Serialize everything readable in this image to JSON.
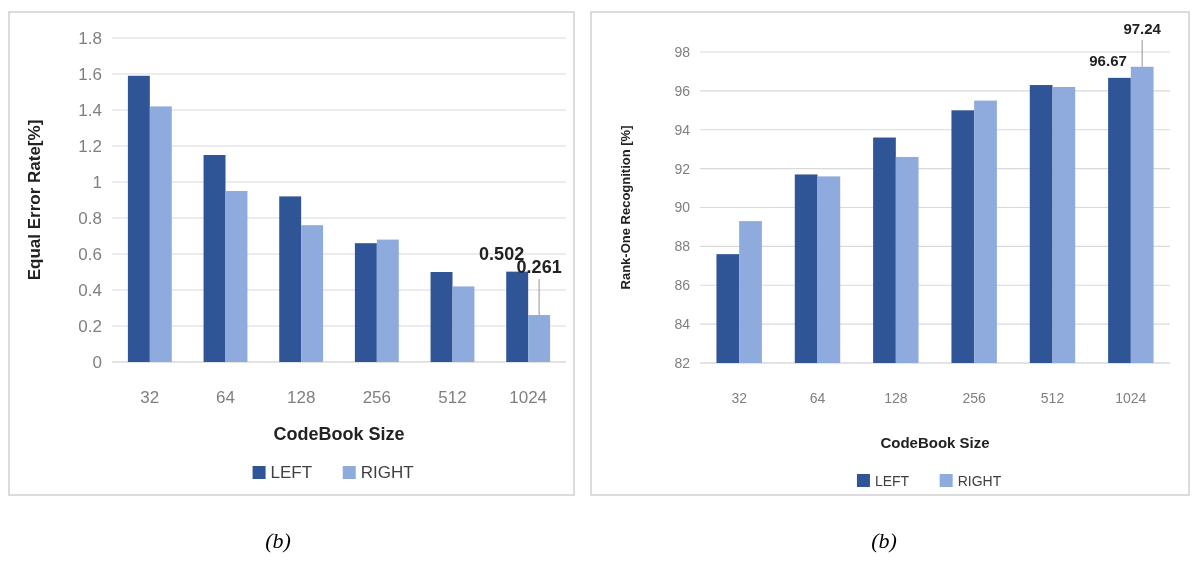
{
  "chart_data": [
    {
      "type": "bar",
      "xlabel": "CodeBook Size",
      "ylabel": "Equal Error Rate[%]",
      "categories": [
        "32",
        "64",
        "128",
        "256",
        "512",
        "1024"
      ],
      "series": [
        {
          "name": "LEFT",
          "color": "#2f5597",
          "values": [
            1.59,
            1.15,
            0.92,
            0.66,
            0.5,
            0.502
          ]
        },
        {
          "name": "RIGHT",
          "color": "#8faadc",
          "values": [
            1.42,
            0.95,
            0.76,
            0.68,
            0.42,
            0.261
          ]
        }
      ],
      "ylim": [
        0,
        1.8
      ],
      "yticks": [
        0,
        0.2,
        0.4,
        0.6,
        0.8,
        1,
        1.2,
        1.4,
        1.6,
        1.8
      ],
      "grid": "y",
      "legend": "bottom",
      "annotations": [
        {
          "text": "0.502",
          "x": "1024",
          "y": 0.502
        },
        {
          "text": "0.261",
          "x": "1024",
          "y": 0.261
        },
        "(b)"
      ]
    },
    {
      "type": "bar",
      "xlabel": "CodeBook Size",
      "ylabel": "Rank-One Recognition [%]",
      "categories": [
        "32",
        "64",
        "128",
        "256",
        "512",
        "1024"
      ],
      "series": [
        {
          "name": "LEFT",
          "color": "#2f5597",
          "values": [
            87.6,
            91.7,
            93.6,
            95.0,
            96.3,
            96.67
          ]
        },
        {
          "name": "RIGHT",
          "color": "#8faadc",
          "values": [
            89.3,
            91.6,
            92.6,
            95.5,
            96.2,
            97.24
          ]
        }
      ],
      "ylim": [
        82,
        98
      ],
      "yticks": [
        82,
        84,
        86,
        88,
        90,
        92,
        94,
        96,
        98
      ],
      "grid": "y",
      "legend": "bottom",
      "annotations": [
        {
          "text": "96.67",
          "x": "1024",
          "y": 96.67
        },
        {
          "text": "97.24",
          "x": "1024",
          "y": 97.24
        },
        "(b)"
      ]
    }
  ]
}
